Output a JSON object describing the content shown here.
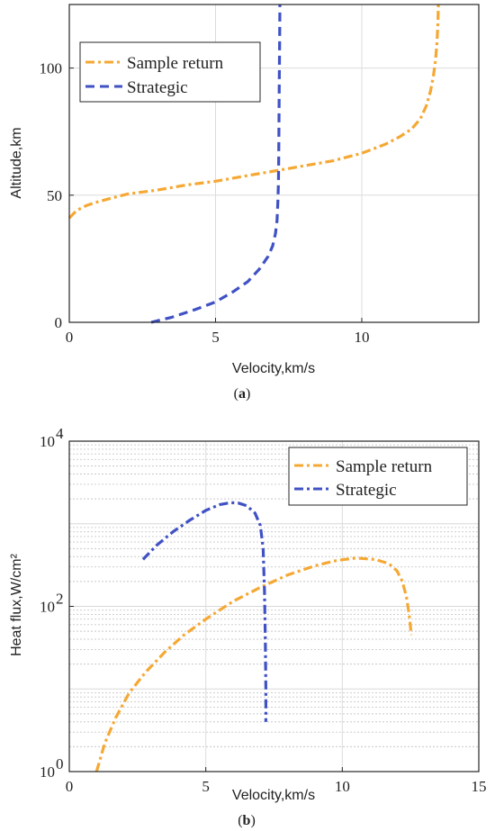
{
  "chart_data": [
    {
      "type": "line",
      "panel_label": "a",
      "title": "",
      "xlabel": "Velocity,km/s",
      "ylabel": "Altitude,km",
      "xlim": [
        0,
        14
      ],
      "ylim": [
        0,
        125
      ],
      "yscale": "linear",
      "xticks": [
        0,
        5,
        10
      ],
      "yticks": [
        0,
        50,
        100
      ],
      "grid": true,
      "legend_position": "top-left",
      "series": [
        {
          "name": "Sample return",
          "color": "#F5A833",
          "dash": "dash-dot",
          "x": [
            0.0,
            0.25,
            0.6,
            1.0,
            1.5,
            2.0,
            3.0,
            4.0,
            5.0,
            6.0,
            7.0,
            8.0,
            9.0,
            10.0,
            10.8,
            11.3,
            11.7,
            12.0,
            12.2,
            12.35,
            12.45,
            12.52,
            12.57,
            12.6,
            12.62
          ],
          "y": [
            41,
            44,
            46,
            47.5,
            49,
            50.5,
            52,
            54,
            55.5,
            57.5,
            59.5,
            61.5,
            63.5,
            66.5,
            70,
            73,
            76,
            80,
            85,
            91,
            97,
            103,
            110,
            117,
            125
          ]
        },
        {
          "name": "Strategic",
          "color": "#3F51C4",
          "dash": "dashed",
          "x": [
            2.8,
            3.5,
            4.3,
            5.0,
            5.6,
            6.1,
            6.5,
            6.8,
            6.95,
            7.05,
            7.1,
            7.13,
            7.15,
            7.16,
            7.17,
            7.18,
            7.19,
            7.2
          ],
          "y": [
            0,
            2,
            5,
            8,
            12,
            16,
            21,
            26,
            30,
            35,
            40,
            47,
            55,
            65,
            80,
            95,
            110,
            125
          ]
        }
      ]
    },
    {
      "type": "line",
      "panel_label": "b",
      "title": "",
      "xlabel": "Velocity,km/s",
      "ylabel": "Heat flux,W/cm²",
      "xlim": [
        0,
        15
      ],
      "ylim": [
        1,
        10000
      ],
      "yscale": "log",
      "xticks": [
        0,
        5,
        10,
        15
      ],
      "yticks": [
        1,
        100,
        10000
      ],
      "grid": true,
      "minor_grid": true,
      "legend_position": "top-right",
      "series": [
        {
          "name": "Sample return",
          "color": "#F5A833",
          "dash": "dash-dot",
          "x": [
            1.0,
            1.3,
            1.7,
            2.2,
            2.8,
            3.5,
            4.2,
            5.0,
            6.0,
            7.0,
            8.0,
            9.0,
            9.8,
            10.5,
            11.2,
            11.7,
            12.0,
            12.2,
            12.35,
            12.45,
            12.5,
            12.52
          ],
          "y": [
            1,
            2.2,
            4.5,
            9,
            16,
            28,
            45,
            70,
            115,
            170,
            240,
            310,
            360,
            385,
            370,
            330,
            270,
            200,
            130,
            80,
            55,
            45
          ]
        },
        {
          "name": "Strategic",
          "color": "#3F51C4",
          "dash": "dash-dot",
          "x": [
            2.7,
            3.2,
            3.8,
            4.4,
            5.0,
            5.5,
            5.9,
            6.2,
            6.5,
            6.8,
            7.0,
            7.1,
            7.15,
            7.18,
            7.2,
            7.2
          ],
          "y": [
            370,
            550,
            800,
            1100,
            1450,
            1700,
            1800,
            1780,
            1650,
            1350,
            950,
            500,
            150,
            40,
            10,
            4
          ]
        }
      ]
    }
  ],
  "captions": [
    "(a)",
    "(b)"
  ]
}
